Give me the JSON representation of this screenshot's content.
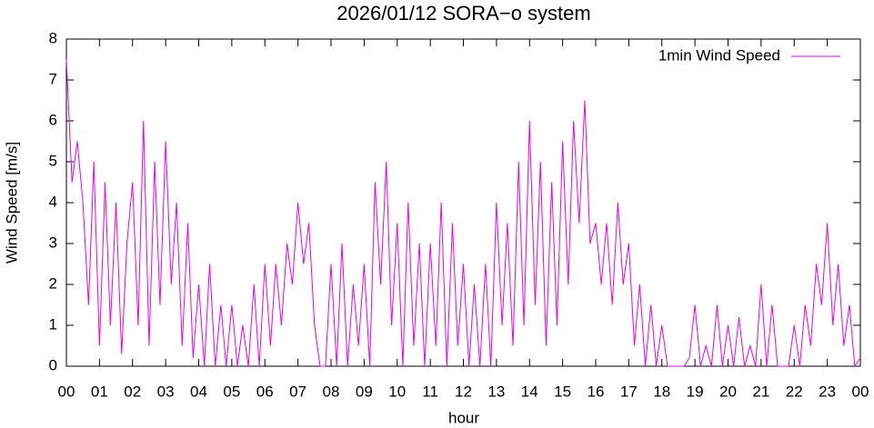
{
  "chart_data": {
    "type": "line",
    "title": "2026/01/12 SORA−o system",
    "xlabel": "hour",
    "ylabel": "Wind Speed [m/s]",
    "legend_position": "top-right",
    "xlim": [
      0,
      24
    ],
    "ylim": [
      0,
      8
    ],
    "yticks": [
      0,
      1,
      2,
      3,
      4,
      5,
      6,
      7,
      8
    ],
    "xticks": [
      {
        "value": 0,
        "label": "00"
      },
      {
        "value": 1,
        "label": "01"
      },
      {
        "value": 2,
        "label": "02"
      },
      {
        "value": 3,
        "label": "03"
      },
      {
        "value": 4,
        "label": "04"
      },
      {
        "value": 5,
        "label": "05"
      },
      {
        "value": 6,
        "label": "06"
      },
      {
        "value": 7,
        "label": "07"
      },
      {
        "value": 8,
        "label": "08"
      },
      {
        "value": 9,
        "label": "09"
      },
      {
        "value": 10,
        "label": "10"
      },
      {
        "value": 11,
        "label": "11"
      },
      {
        "value": 12,
        "label": "12"
      },
      {
        "value": 13,
        "label": "13"
      },
      {
        "value": 14,
        "label": "14"
      },
      {
        "value": 15,
        "label": "15"
      },
      {
        "value": 16,
        "label": "16"
      },
      {
        "value": 17,
        "label": "17"
      },
      {
        "value": 18,
        "label": "18"
      },
      {
        "value": 19,
        "label": "19"
      },
      {
        "value": 20,
        "label": "20"
      },
      {
        "value": 21,
        "label": "21"
      },
      {
        "value": 22,
        "label": "22"
      },
      {
        "value": 23,
        "label": "23"
      },
      {
        "value": 24,
        "label": "00"
      }
    ],
    "x": [
      0,
      0.17,
      0.33,
      0.5,
      0.67,
      0.83,
      1,
      1.17,
      1.33,
      1.5,
      1.67,
      1.83,
      2,
      2.17,
      2.33,
      2.5,
      2.67,
      2.83,
      3,
      3.17,
      3.33,
      3.5,
      3.67,
      3.83,
      4,
      4.17,
      4.33,
      4.5,
      4.67,
      4.83,
      5,
      5.17,
      5.33,
      5.5,
      5.67,
      5.83,
      6,
      6.17,
      6.33,
      6.5,
      6.67,
      6.83,
      7,
      7.17,
      7.33,
      7.5,
      7.67,
      7.83,
      8,
      8.17,
      8.33,
      8.5,
      8.67,
      8.83,
      9,
      9.17,
      9.33,
      9.5,
      9.67,
      9.83,
      10,
      10.17,
      10.33,
      10.5,
      10.67,
      10.83,
      11,
      11.17,
      11.33,
      11.5,
      11.67,
      11.83,
      12,
      12.17,
      12.33,
      12.5,
      12.67,
      12.83,
      13,
      13.17,
      13.33,
      13.5,
      13.67,
      13.83,
      14,
      14.17,
      14.33,
      14.5,
      14.67,
      14.83,
      15,
      15.17,
      15.33,
      15.5,
      15.67,
      15.83,
      16,
      16.17,
      16.33,
      16.5,
      16.67,
      16.83,
      17,
      17.17,
      17.33,
      17.5,
      17.67,
      17.83,
      18,
      18.17,
      18.33,
      18.5,
      18.67,
      18.83,
      19,
      19.17,
      19.33,
      19.5,
      19.67,
      19.83,
      20,
      20.17,
      20.33,
      20.5,
      20.67,
      20.83,
      21,
      21.17,
      21.33,
      21.5,
      21.67,
      21.83,
      22,
      22.17,
      22.33,
      22.5,
      22.67,
      22.83,
      23,
      23.17,
      23.33,
      23.5,
      23.67,
      23.83,
      24
    ],
    "series": [
      {
        "name": "1min Wind Speed",
        "color": "#ee00ee",
        "values": [
          7.5,
          4.5,
          5.5,
          4.0,
          1.5,
          5.0,
          0.5,
          4.5,
          1.0,
          4.0,
          0.3,
          3.0,
          4.5,
          1.0,
          6.0,
          0.5,
          5.0,
          1.5,
          5.5,
          2.0,
          4.0,
          0.5,
          3.5,
          0.2,
          2.0,
          0,
          2.5,
          0,
          1.5,
          0,
          1.5,
          0,
          1.0,
          0,
          2.0,
          0,
          2.5,
          0.5,
          2.5,
          1.0,
          3.0,
          2.0,
          4.0,
          2.5,
          3.5,
          1.0,
          0,
          0,
          2.5,
          0,
          3.0,
          0,
          2.0,
          0.5,
          2.5,
          0,
          4.5,
          2.0,
          5.0,
          1.0,
          3.5,
          0,
          4.0,
          0.5,
          3.0,
          0,
          3.0,
          0.5,
          4.0,
          0,
          3.5,
          0.5,
          2.5,
          0,
          2.0,
          0,
          2.5,
          0,
          4.0,
          1.0,
          3.5,
          0.5,
          5.0,
          1.0,
          6.0,
          1.5,
          5.0,
          0.5,
          4.5,
          1.0,
          5.5,
          2.0,
          6.0,
          3.5,
          6.5,
          3.0,
          3.5,
          2.0,
          3.5,
          1.5,
          4.0,
          2.0,
          3.0,
          0.5,
          2.0,
          0,
          1.5,
          0,
          1.0,
          0,
          0,
          0,
          0,
          0.2,
          1.5,
          0,
          0.5,
          0,
          1.5,
          0,
          1.0,
          0,
          1.2,
          0,
          0.5,
          0,
          2.0,
          0,
          1.5,
          0,
          0,
          0,
          1.0,
          0,
          1.5,
          0.5,
          2.5,
          1.5,
          3.5,
          1.0,
          2.5,
          0.5,
          1.5,
          0,
          0.2
        ]
      }
    ]
  }
}
